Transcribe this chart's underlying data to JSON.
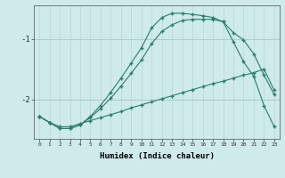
{
  "xlabel": "Humidex (Indice chaleur)",
  "bg_color": "#ceeaea",
  "line_color": "#2a7d6e",
  "grid_color_v": "#b8d8d8",
  "grid_color_h": "#b0cccc",
  "x_ticks": [
    0,
    1,
    2,
    3,
    4,
    5,
    6,
    7,
    8,
    9,
    10,
    11,
    12,
    13,
    14,
    15,
    16,
    17,
    18,
    19,
    20,
    21,
    22,
    23
  ],
  "xlim": [
    -0.5,
    23.5
  ],
  "ylim": [
    -2.65,
    -0.45
  ],
  "yticks": [
    -2.0,
    -1.0
  ],
  "line1_x": [
    0,
    1,
    2,
    3,
    4,
    5,
    6,
    7,
    8,
    9,
    10,
    11,
    12,
    13,
    14,
    15,
    16,
    17,
    18,
    19,
    20,
    21,
    22,
    23
  ],
  "line1_y": [
    -2.28,
    -2.38,
    -2.45,
    -2.45,
    -2.4,
    -2.35,
    -2.3,
    -2.25,
    -2.2,
    -2.14,
    -2.09,
    -2.04,
    -1.99,
    -1.94,
    -1.89,
    -1.84,
    -1.79,
    -1.74,
    -1.7,
    -1.65,
    -1.6,
    -1.56,
    -1.5,
    -1.85
  ],
  "line2_x": [
    0,
    1,
    2,
    3,
    4,
    5,
    6,
    7,
    8,
    9,
    10,
    11,
    12,
    13,
    14,
    15,
    16,
    17,
    18,
    19,
    20,
    21,
    22,
    23
  ],
  "line2_y": [
    -2.28,
    -2.38,
    -2.48,
    -2.48,
    -2.42,
    -2.3,
    -2.15,
    -1.98,
    -1.78,
    -1.57,
    -1.35,
    -1.08,
    -0.88,
    -0.77,
    -0.7,
    -0.68,
    -0.68,
    -0.68,
    -0.72,
    -1.05,
    -1.38,
    -1.62,
    -2.1,
    -2.45
  ],
  "line3_x": [
    0,
    1,
    2,
    3,
    4,
    5,
    6,
    7,
    8,
    9,
    10,
    11,
    12,
    13,
    14,
    15,
    16,
    17,
    18,
    19,
    20,
    21,
    22,
    23
  ],
  "line3_y": [
    -2.28,
    -2.38,
    -2.48,
    -2.48,
    -2.42,
    -2.28,
    -2.1,
    -1.88,
    -1.65,
    -1.4,
    -1.15,
    -0.82,
    -0.65,
    -0.58,
    -0.58,
    -0.6,
    -0.62,
    -0.65,
    -0.72,
    -0.9,
    -1.02,
    -1.25,
    -1.6,
    -1.92
  ]
}
